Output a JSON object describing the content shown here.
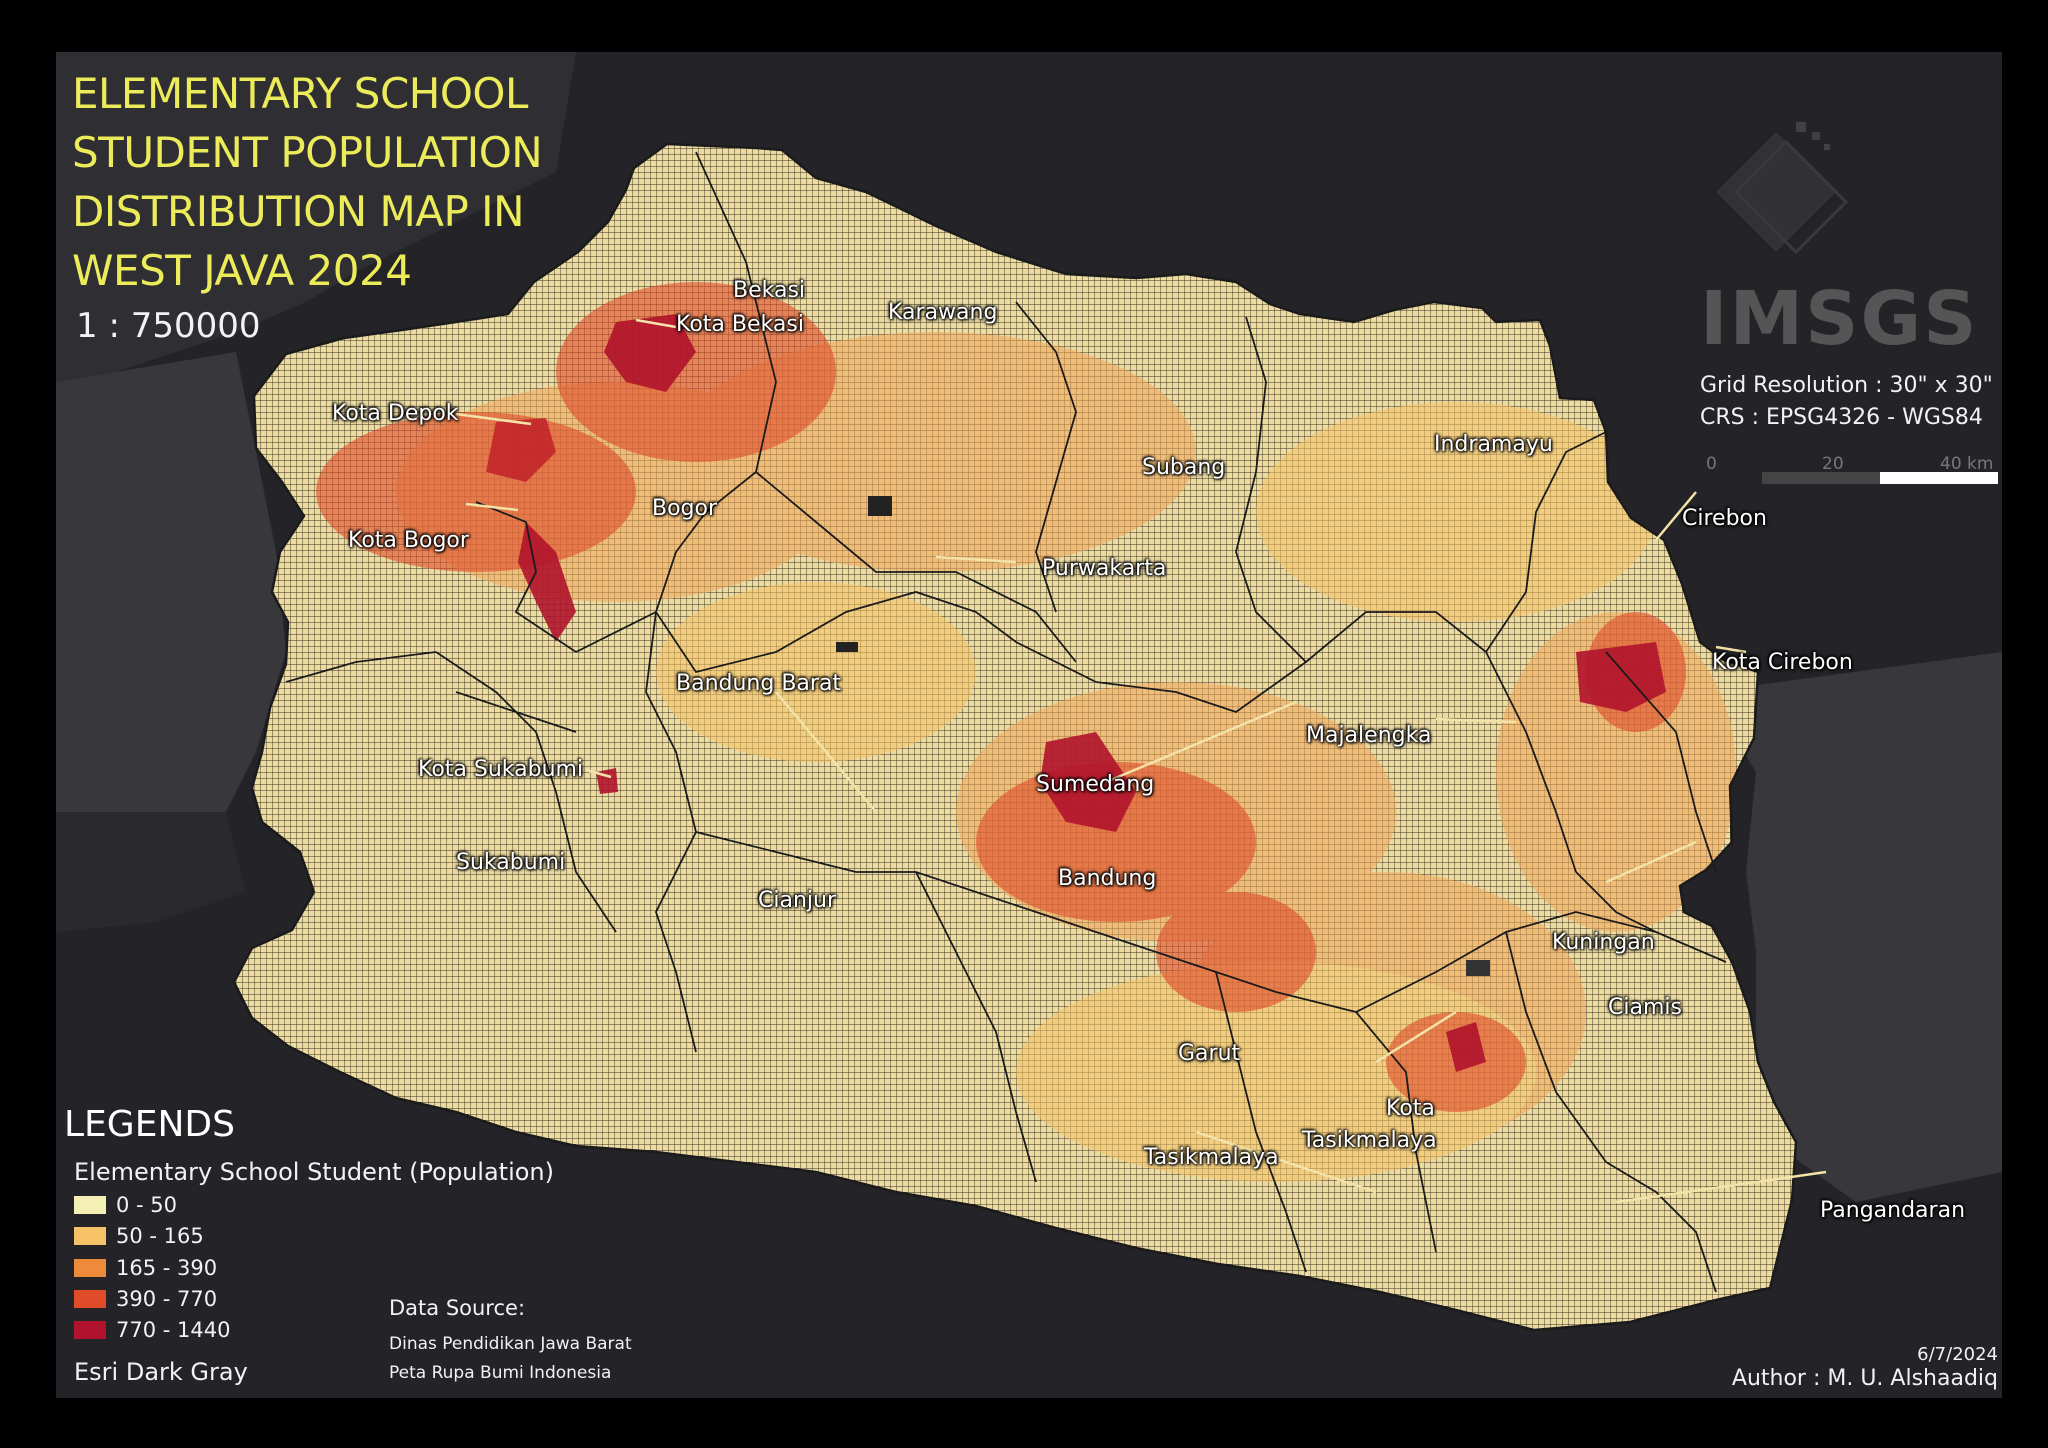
{
  "title_lines": [
    "ELEMENTARY SCHOOL",
    "STUDENT POPULATION",
    "DISTRIBUTION MAP IN",
    "WEST JAVA 2024"
  ],
  "scale_ratio": "1 : 750000",
  "grid_info": {
    "resolution": "Grid Resolution : 30\" x 30\"",
    "crs": "CRS : EPSG4326 - WGS84"
  },
  "scalebar": {
    "labels": [
      "0",
      "20",
      "40 km"
    ]
  },
  "logo": {
    "text": "IMSGS"
  },
  "regions": [
    {
      "name": "Bekasi"
    },
    {
      "name": "Kota Bekasi"
    },
    {
      "name": "Karawang"
    },
    {
      "name": "Kota Depok"
    },
    {
      "name": "Bogor"
    },
    {
      "name": "Kota Bogor"
    },
    {
      "name": "Subang"
    },
    {
      "name": "Indramayu"
    },
    {
      "name": "Purwakarta"
    },
    {
      "name": "Cirebon"
    },
    {
      "name": "Kota Cirebon"
    },
    {
      "name": "Bandung Barat"
    },
    {
      "name": "Majalengka"
    },
    {
      "name": "Kota Sukabumi"
    },
    {
      "name": "Sumedang"
    },
    {
      "name": "Sukabumi"
    },
    {
      "name": "Bandung"
    },
    {
      "name": "Cianjur"
    },
    {
      "name": "Kuningan"
    },
    {
      "name": "Ciamis"
    },
    {
      "name": "Garut"
    },
    {
      "name": "Kota"
    },
    {
      "name": "Tasikmalaya"
    },
    {
      "name": "Tasikmalaya"
    },
    {
      "name": "Pangandaran"
    }
  ],
  "legend": {
    "title": "LEGENDS",
    "subtitle": "Elementary School Student (Population)",
    "classes": [
      {
        "label": "0 - 50",
        "color": "#f4efb4"
      },
      {
        "label": "50 - 165",
        "color": "#f5c265"
      },
      {
        "label": "165 - 390",
        "color": "#ef8a3a"
      },
      {
        "label": "390 - 770",
        "color": "#e04b2a"
      },
      {
        "label": "770 - 1440",
        "color": "#b0132b"
      }
    ],
    "basemap": "Esri Dark Gray"
  },
  "data_source": {
    "heading": "Data Source:",
    "lines": [
      "Dinas Pendidikan Jawa Barat",
      "Peta Rupa Bumi Indonesia"
    ]
  },
  "date": "6/7/2024",
  "author": "Author : M. U. Alshaadiq"
}
